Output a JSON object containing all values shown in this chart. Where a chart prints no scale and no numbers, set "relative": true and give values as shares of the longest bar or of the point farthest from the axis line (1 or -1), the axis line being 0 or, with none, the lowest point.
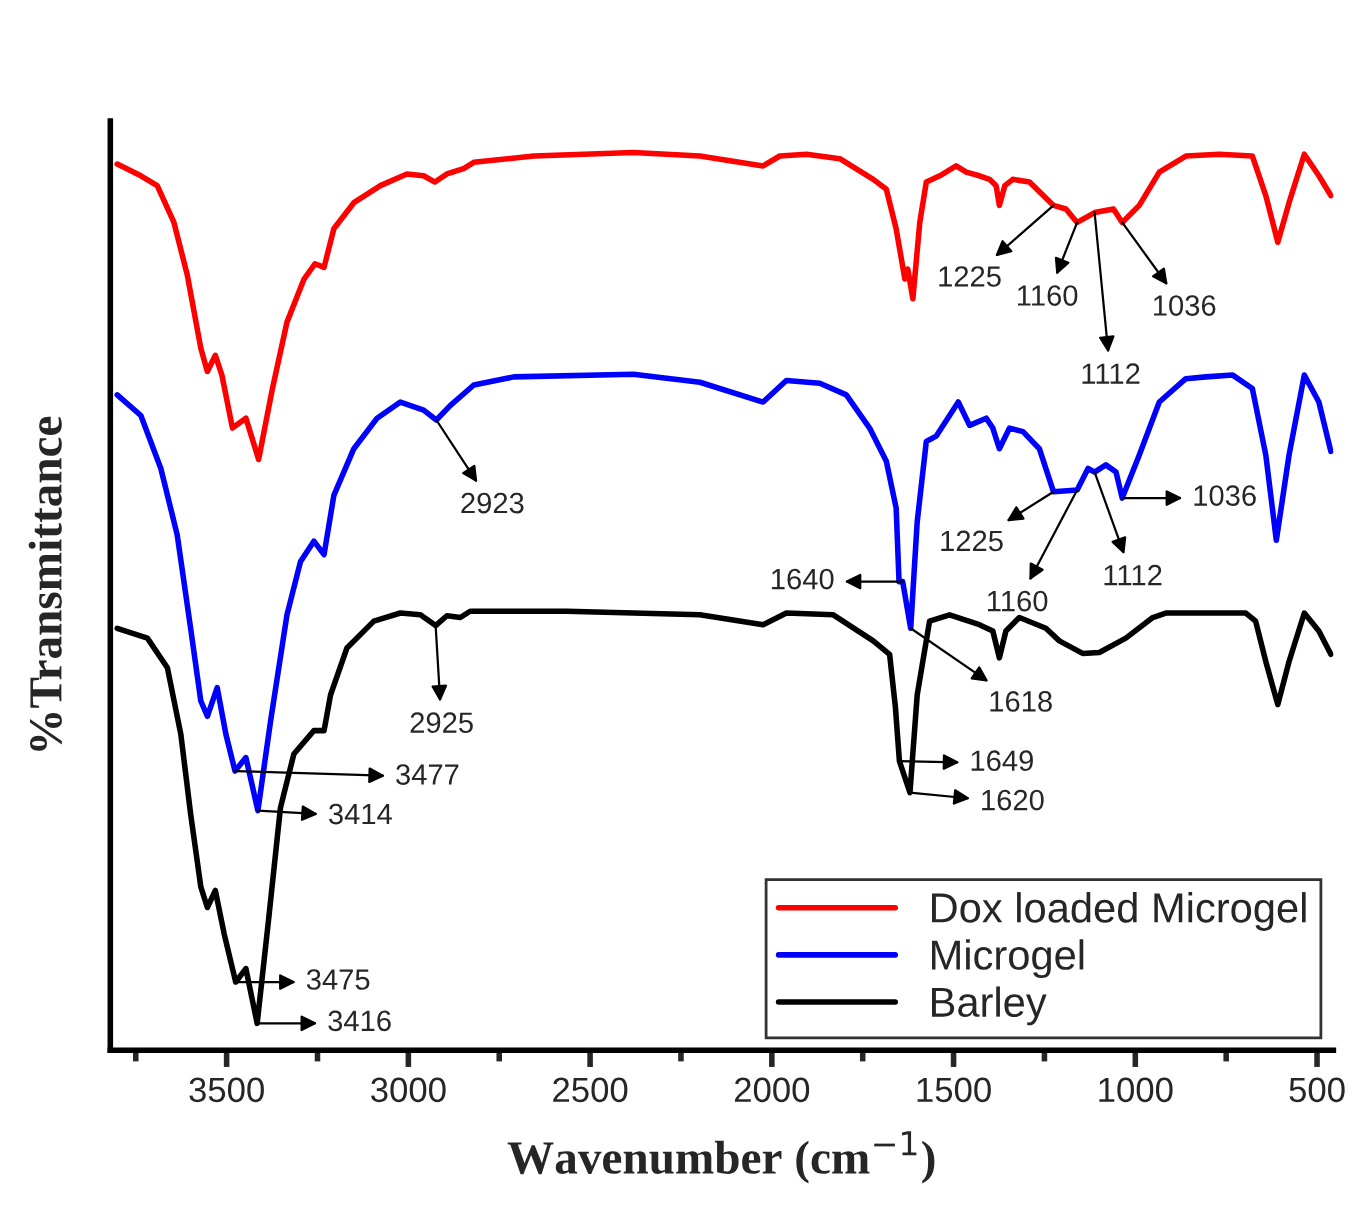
{
  "chart_data": {
    "type": "line",
    "relative": true,
    "xlabel": "Wavenumber (cm$^{−1}$)",
    "ylabel": "%Transmittance",
    "xlim": [
      3820,
      455
    ],
    "xticks": [
      3500,
      3000,
      2500,
      2000,
      1500,
      1000,
      500,
      {
        "value": 3750,
        "label": null
      },
      {
        "value": 3250,
        "label": null
      },
      {
        "value": 2750,
        "label": null
      },
      {
        "value": 2250,
        "label": null
      },
      {
        "value": 1750,
        "label": null
      },
      {
        "value": 1250,
        "label": null
      },
      {
        "value": 750,
        "label": null
      }
    ],
    "legend": "bottom right",
    "grid": false,
    "line_style": "solid",
    "marker": "none",
    "series": [
      {
        "name": "Dox loaded Microgel",
        "color": "#ff0000",
        "x": [
          3801,
          3736,
          3691,
          3645,
          3608,
          3571,
          3553,
          3531,
          3513,
          3484,
          3447,
          3412,
          3374,
          3334,
          3287,
          3257,
          3232,
          3205,
          3150,
          3077,
          3004,
          2958,
          2927,
          2894,
          2848,
          2820,
          2655,
          2381,
          2198,
          2024,
          1978,
          1905,
          1813,
          1721,
          1685,
          1658,
          1634,
          1626,
          1612,
          1593,
          1575,
          1538,
          1493,
          1465,
          1429,
          1401,
          1383,
          1374,
          1359,
          1337,
          1291,
          1225,
          1191,
          1160,
          1112,
          1060,
          1036,
          989,
          934,
          861,
          769,
          678,
          641,
          608,
          577,
          535,
          495,
          462
        ],
        "values": [
          0.987,
          0.974,
          0.963,
          0.922,
          0.863,
          0.782,
          0.756,
          0.774,
          0.752,
          0.693,
          0.704,
          0.658,
          0.737,
          0.811,
          0.859,
          0.876,
          0.872,
          0.915,
          0.944,
          0.963,
          0.976,
          0.974,
          0.967,
          0.976,
          0.982,
          0.989,
          0.996,
          1.0,
          0.996,
          0.985,
          0.996,
          0.998,
          0.993,
          0.97,
          0.959,
          0.915,
          0.859,
          0.87,
          0.837,
          0.922,
          0.967,
          0.974,
          0.985,
          0.978,
          0.974,
          0.97,
          0.963,
          0.941,
          0.963,
          0.97,
          0.967,
          0.941,
          0.937,
          0.922,
          0.933,
          0.937,
          0.922,
          0.941,
          0.978,
          0.996,
          0.998,
          0.996,
          0.952,
          0.9,
          0.944,
          0.998,
          0.974,
          0.952
        ]
      },
      {
        "name": "Microgel",
        "color": "#0000ff",
        "x": [
          3801,
          3736,
          3681,
          3636,
          3599,
          3571,
          3553,
          3526,
          3502,
          3477,
          3447,
          3414,
          3379,
          3334,
          3297,
          3260,
          3232,
          3205,
          3150,
          3086,
          3022,
          2958,
          2923,
          2885,
          2820,
          2710,
          2381,
          2198,
          2024,
          1960,
          1868,
          1795,
          1731,
          1685,
          1658,
          1650,
          1640,
          1618,
          1600,
          1575,
          1548,
          1511,
          1487,
          1456,
          1410,
          1392,
          1374,
          1346,
          1309,
          1264,
          1225,
          1160,
          1130,
          1112,
          1081,
          1053,
          1036,
          989,
          934,
          861,
          806,
          732,
          678,
          641,
          612,
          577,
          535,
          495,
          462
        ],
        "values": [
          0.73,
          0.707,
          0.648,
          0.574,
          0.47,
          0.389,
          0.372,
          0.404,
          0.352,
          0.311,
          0.326,
          0.267,
          0.367,
          0.485,
          0.544,
          0.567,
          0.552,
          0.618,
          0.67,
          0.704,
          0.722,
          0.713,
          0.702,
          0.718,
          0.741,
          0.75,
          0.753,
          0.744,
          0.722,
          0.746,
          0.743,
          0.73,
          0.693,
          0.656,
          0.604,
          0.522,
          0.522,
          0.47,
          0.589,
          0.678,
          0.684,
          0.707,
          0.722,
          0.696,
          0.704,
          0.693,
          0.67,
          0.693,
          0.689,
          0.67,
          0.622,
          0.624,
          0.648,
          0.644,
          0.652,
          0.644,
          0.615,
          0.663,
          0.722,
          0.748,
          0.75,
          0.752,
          0.737,
          0.663,
          0.568,
          0.663,
          0.752,
          0.722,
          0.667
        ]
      },
      {
        "name": "Barley",
        "color": "#000000",
        "x": [
          3801,
          3718,
          3663,
          3626,
          3599,
          3571,
          3553,
          3531,
          3507,
          3475,
          3447,
          3416,
          3385,
          3352,
          3315,
          3260,
          3232,
          3214,
          3169,
          3095,
          3022,
          2967,
          2925,
          2894,
          2857,
          2830,
          2564,
          2198,
          2024,
          1960,
          1831,
          1721,
          1676,
          1660,
          1649,
          1620,
          1600,
          1566,
          1511,
          1429,
          1392,
          1374,
          1356,
          1319,
          1246,
          1209,
          1145,
          1099,
          1026,
          952,
          916,
          696,
          669,
          641,
          608,
          577,
          535,
          495,
          462
        ],
        "values": [
          0.47,
          0.459,
          0.426,
          0.352,
          0.263,
          0.182,
          0.159,
          0.178,
          0.13,
          0.076,
          0.091,
          0.03,
          0.144,
          0.27,
          0.33,
          0.356,
          0.356,
          0.396,
          0.448,
          0.478,
          0.487,
          0.485,
          0.473,
          0.484,
          0.482,
          0.489,
          0.489,
          0.485,
          0.474,
          0.487,
          0.485,
          0.456,
          0.441,
          0.382,
          0.322,
          0.287,
          0.396,
          0.478,
          0.485,
          0.474,
          0.467,
          0.437,
          0.467,
          0.482,
          0.47,
          0.456,
          0.442,
          0.443,
          0.459,
          0.482,
          0.487,
          0.487,
          0.478,
          0.433,
          0.385,
          0.433,
          0.487,
          0.467,
          0.441
        ]
      }
    ],
    "annotations": [
      {
        "text": "1225",
        "x": 1225,
        "y": 0.941
      },
      {
        "text": "1160",
        "x": 1160,
        "y": 0.922
      },
      {
        "text": "1112",
        "x": 1112,
        "y": 0.933
      },
      {
        "text": "1036",
        "x": 1036,
        "y": 0.922
      },
      {
        "text": "2923",
        "x": 2923,
        "y": 0.702
      },
      {
        "text": "1225",
        "x": 1225,
        "y": 0.622
      },
      {
        "text": "1160",
        "x": 1160,
        "y": 0.624
      },
      {
        "text": "1112",
        "x": 1112,
        "y": 0.644
      },
      {
        "text": "1036",
        "x": 1036,
        "y": 0.615
      },
      {
        "text": "1640",
        "x": 1640,
        "y": 0.522
      },
      {
        "text": "1618",
        "x": 1618,
        "y": 0.47
      },
      {
        "text": "3477",
        "x": 3477,
        "y": 0.311
      },
      {
        "text": "3414",
        "x": 3414,
        "y": 0.267
      },
      {
        "text": "2925",
        "x": 2925,
        "y": 0.473
      },
      {
        "text": "1649",
        "x": 1649,
        "y": 0.322
      },
      {
        "text": "1620",
        "x": 1620,
        "y": 0.287
      },
      {
        "text": "3475",
        "x": 3475,
        "y": 0.076
      },
      {
        "text": "3416",
        "x": 3416,
        "y": 0.03
      }
    ]
  }
}
